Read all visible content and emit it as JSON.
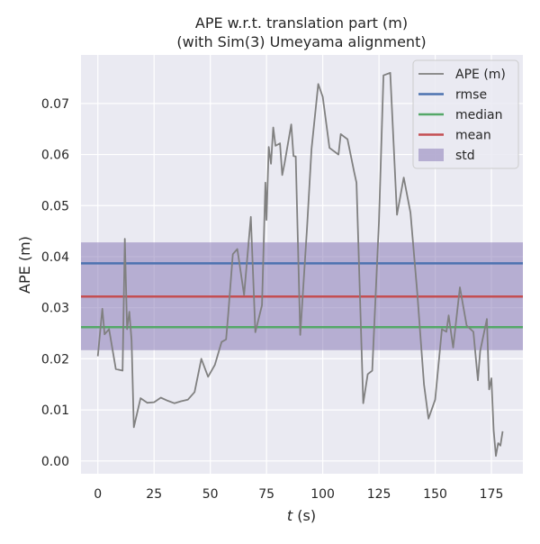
{
  "chart_data": {
    "type": "line",
    "title": "APE w.r.t. translation part (m)",
    "subtitle": "(with Sim(3) Umeyama alignment)",
    "xlabel": "t (s)",
    "xlabel_var": "t",
    "xlabel_unit": " (s)",
    "ylabel": "APE (m)",
    "xlim": [
      -7.5,
      189
    ],
    "ylim": [
      -0.0025,
      0.0795
    ],
    "xticks": [
      0,
      25,
      50,
      75,
      100,
      125,
      150,
      175
    ],
    "yticks": [
      0.0,
      0.01,
      0.02,
      0.03,
      0.04,
      0.05,
      0.06,
      0.07
    ],
    "ytick_labels": [
      "0.00",
      "0.01",
      "0.02",
      "0.03",
      "0.04",
      "0.05",
      "0.06",
      "0.07"
    ],
    "grid": true,
    "legend_position": "top-right",
    "colors": {
      "background": "#eaeaf2",
      "grid": "#ffffff",
      "ape": "#808080",
      "rmse": "#4c72b0",
      "median": "#55a868",
      "mean": "#c44e52",
      "std_fill": "#8172b2"
    },
    "stats": {
      "rmse": 0.0387,
      "median": 0.0262,
      "mean": 0.0322,
      "std_lower": 0.0217,
      "std_upper": 0.0428
    },
    "legend": [
      "APE (m)",
      "rmse",
      "median",
      "mean",
      "std"
    ],
    "series": [
      {
        "name": "APE (m)",
        "x": [
          0,
          2,
          3,
          5,
          8,
          11,
          12,
          13,
          14,
          15,
          16,
          19,
          22,
          25,
          28,
          31,
          34,
          37,
          40,
          43,
          46,
          49,
          52,
          55,
          57,
          58,
          60,
          62,
          65,
          68,
          70,
          73,
          74.5,
          75,
          76,
          77,
          78,
          79,
          81,
          82,
          83,
          86,
          87,
          88,
          90,
          93,
          95,
          98,
          100,
          103,
          107,
          108,
          111,
          114,
          115,
          118,
          120,
          122,
          125,
          127,
          130,
          133,
          136,
          139,
          142,
          145,
          147,
          150,
          153,
          155,
          156,
          158,
          161,
          164,
          167,
          169,
          170,
          173,
          174,
          175,
          176,
          177,
          178,
          179,
          180
        ],
        "values": [
          0.0205,
          0.0298,
          0.0248,
          0.0258,
          0.018,
          0.0177,
          0.0435,
          0.0258,
          0.0292,
          0.0236,
          0.0066,
          0.0123,
          0.0114,
          0.0115,
          0.0124,
          0.0118,
          0.0113,
          0.0117,
          0.012,
          0.0135,
          0.02,
          0.0165,
          0.0188,
          0.0233,
          0.0238,
          0.029,
          0.0405,
          0.0415,
          0.0325,
          0.0478,
          0.0252,
          0.0305,
          0.0545,
          0.0472,
          0.0615,
          0.0582,
          0.0653,
          0.0617,
          0.0622,
          0.056,
          0.0582,
          0.0659,
          0.0597,
          0.0596,
          0.0247,
          0.0455,
          0.061,
          0.0738,
          0.0713,
          0.0613,
          0.06,
          0.064,
          0.063,
          0.0565,
          0.0545,
          0.0113,
          0.017,
          0.0177,
          0.047,
          0.0755,
          0.076,
          0.0482,
          0.0555,
          0.0486,
          0.033,
          0.015,
          0.0083,
          0.012,
          0.0258,
          0.0253,
          0.0285,
          0.0222,
          0.034,
          0.0265,
          0.0253,
          0.0158,
          0.0215,
          0.0278,
          0.014,
          0.0162,
          0.006,
          0.001,
          0.0035,
          0.003,
          0.0058
        ]
      }
    ]
  }
}
